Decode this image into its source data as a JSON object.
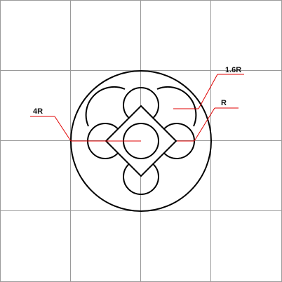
{
  "diagram": {
    "labels": {
      "big_radius": "4R",
      "mid_radius": "1.6R",
      "small_radius": "R"
    },
    "colors": {
      "background": "#ffffff",
      "grid": "#9a9a9a",
      "shape": "#000000",
      "annotation": "#e00000"
    },
    "grid": true
  }
}
